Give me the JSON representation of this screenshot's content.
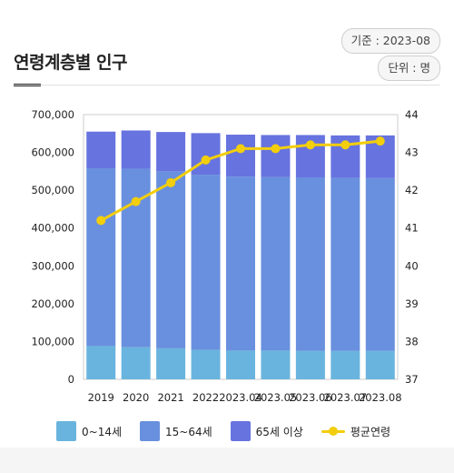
{
  "header": {
    "title": "연령계층별 인구",
    "reference_date": "기준 : 2023-08",
    "unit": "단위 : 명"
  },
  "colors": {
    "age_0_14": "#69B4DE",
    "age_15_64": "#6990DE",
    "age_65_plus": "#6773DF",
    "avg_age_line": "#F2CE0C"
  },
  "chart_data": {
    "type": "bar",
    "stacked": true,
    "categories": [
      "2019",
      "2020",
      "2021",
      "2022",
      "2023.04",
      "2023.05",
      "2023.06",
      "2023.07",
      "2023.08"
    ],
    "y_left": {
      "ylim": [
        0,
        700000
      ],
      "ticks": [
        0,
        100000,
        200000,
        300000,
        400000,
        500000,
        600000,
        700000
      ],
      "tick_labels": [
        "0",
        "100,000",
        "200,000",
        "300,000",
        "400,000",
        "500,000",
        "600,000",
        "700,000"
      ]
    },
    "y_right": {
      "ylim": [
        37,
        44
      ],
      "ticks": [
        37,
        38,
        39,
        40,
        41,
        42,
        43,
        44
      ],
      "tick_labels": [
        "37",
        "38",
        "39",
        "40",
        "41",
        "42",
        "43",
        "44"
      ]
    },
    "series": [
      {
        "name": "0~14세",
        "values": [
          88000,
          85000,
          82000,
          78000,
          76000,
          76000,
          75000,
          75000,
          75000
        ]
      },
      {
        "name": "15~64세",
        "values": [
          470000,
          472000,
          468000,
          463000,
          460000,
          459000,
          459000,
          458000,
          457000
        ]
      },
      {
        "name": "65세 이상",
        "values": [
          97000,
          101000,
          104000,
          110000,
          111000,
          111000,
          112000,
          112000,
          113000
        ]
      }
    ],
    "line_series": {
      "name": "평균연령",
      "axis": "right",
      "values": [
        41.2,
        41.7,
        42.2,
        42.8,
        43.1,
        43.1,
        43.2,
        43.2,
        43.3
      ]
    },
    "grid": false,
    "legend": "bottom"
  }
}
